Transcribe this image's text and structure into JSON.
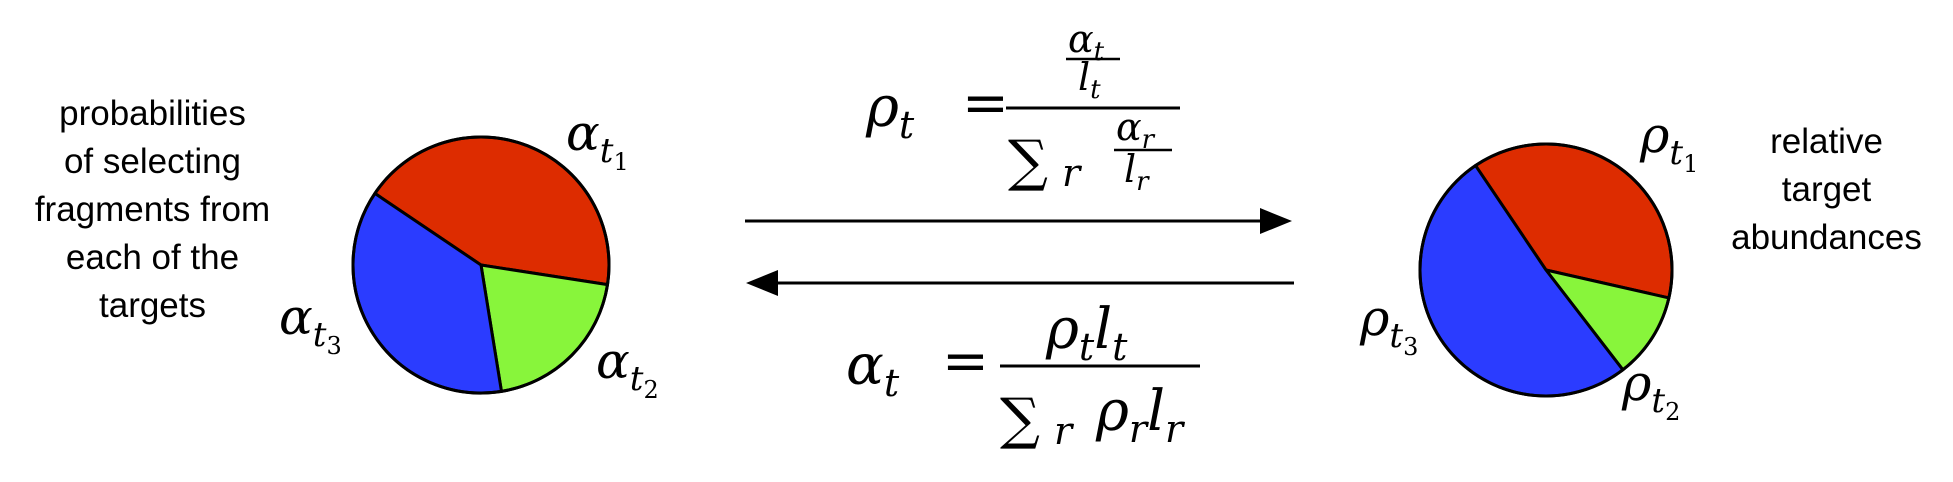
{
  "left_caption": {
    "lines": [
      "probabilities",
      "of selecting",
      "fragments from",
      "each of the",
      "targets"
    ]
  },
  "right_caption": {
    "lines": [
      "relative",
      "target",
      "abundances"
    ]
  },
  "left_pie": {
    "slices": [
      {
        "label_base": "α",
        "label_sub": "t",
        "label_subsub": "1",
        "fraction": 0.43,
        "color": "#dd2c00"
      },
      {
        "label_base": "α",
        "label_sub": "t",
        "label_subsub": "2",
        "fraction": 0.2,
        "color": "#88f53b"
      },
      {
        "label_base": "α",
        "label_sub": "t",
        "label_subsub": "3",
        "fraction": 0.37,
        "color": "#2b3cff"
      }
    ]
  },
  "right_pie": {
    "slices": [
      {
        "label_base": "ρ",
        "label_sub": "t",
        "label_subsub": "1",
        "fraction": 0.38,
        "color": "#dd2c00"
      },
      {
        "label_base": "ρ",
        "label_sub": "t",
        "label_subsub": "2",
        "fraction": 0.11,
        "color": "#88f53b"
      },
      {
        "label_base": "ρ",
        "label_sub": "t",
        "label_subsub": "3",
        "fraction": 0.51,
        "color": "#2b3cff"
      }
    ]
  },
  "top_formula": {
    "lhs_base": "ρ",
    "lhs_sub": "t",
    "equals": "=",
    "num_top_base": "α",
    "num_top_sub": "t",
    "num_bottom_base": "l",
    "num_bottom_sub": "t",
    "sum": "∑",
    "sum_sub": "r",
    "den_top_base": "α",
    "den_top_sub": "r",
    "den_bottom_base": "l",
    "den_bottom_sub": "r"
  },
  "bottom_formula": {
    "lhs_base": "α",
    "lhs_sub": "t",
    "equals": "=",
    "num_a_base": "ρ",
    "num_a_sub": "t",
    "num_b_base": "l",
    "num_b_sub": "t",
    "sum": "∑",
    "sum_sub": "r",
    "den_a_base": "ρ",
    "den_a_sub": "r",
    "den_b_base": "l",
    "den_b_sub": "r"
  },
  "colors": {
    "stroke": "#000000",
    "background": "#ffffff"
  }
}
